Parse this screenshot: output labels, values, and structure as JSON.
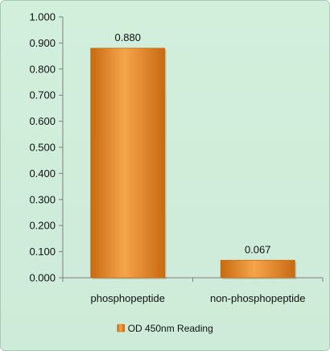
{
  "chart_data": {
    "type": "bar",
    "title": "",
    "xlabel": "",
    "ylabel": "",
    "categories": [
      "phosphopeptide",
      "non-phosphopeptide"
    ],
    "series": [
      {
        "name": "OD 450nm Reading",
        "values": [
          0.88,
          0.067
        ],
        "data_labels": [
          "0.880",
          "0.067"
        ]
      }
    ],
    "ylim": [
      0,
      1.0
    ],
    "y_ticks": [
      0.0,
      0.1,
      0.2,
      0.3,
      0.4,
      0.5,
      0.6,
      0.7,
      0.8,
      0.9,
      1.0
    ],
    "y_tick_labels": [
      "0.000",
      "0.100",
      "0.200",
      "0.300",
      "0.400",
      "0.500",
      "0.600",
      "0.700",
      "0.800",
      "0.900",
      "1.000"
    ],
    "grid": false,
    "legend_position": "bottom",
    "colors": {
      "bar_light": "#f6a54c",
      "bar": "#e98a24",
      "bar_dark": "#c86a10",
      "axis": "#7f7f7f"
    }
  }
}
